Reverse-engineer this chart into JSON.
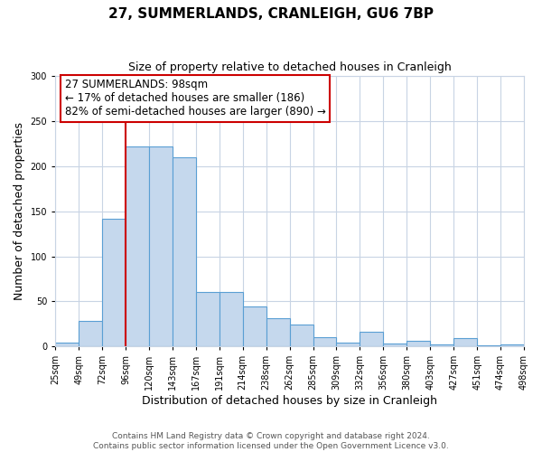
{
  "title": "27, SUMMERLANDS, CRANLEIGH, GU6 7BP",
  "subtitle": "Size of property relative to detached houses in Cranleigh",
  "xlabel": "Distribution of detached houses by size in Cranleigh",
  "ylabel": "Number of detached properties",
  "bin_labels": [
    "25sqm",
    "49sqm",
    "72sqm",
    "96sqm",
    "120sqm",
    "143sqm",
    "167sqm",
    "191sqm",
    "214sqm",
    "238sqm",
    "262sqm",
    "285sqm",
    "309sqm",
    "332sqm",
    "356sqm",
    "380sqm",
    "403sqm",
    "427sqm",
    "451sqm",
    "474sqm",
    "498sqm"
  ],
  "bar_values": [
    4,
    28,
    142,
    222,
    222,
    210,
    60,
    60,
    44,
    31,
    24,
    10,
    4,
    16,
    3,
    6,
    2,
    9,
    1,
    2
  ],
  "bar_color": "#c5d8ed",
  "bar_edge_color": "#5a9fd4",
  "vline_x": 3.0,
  "vline_color": "#cc0000",
  "annotation_line1": "27 SUMMERLANDS: 98sqm",
  "annotation_line2": "← 17% of detached houses are smaller (186)",
  "annotation_line3": "82% of semi-detached houses are larger (890) →",
  "annotation_box_color": "#ffffff",
  "annotation_box_edge_color": "#cc0000",
  "ylim": [
    0,
    300
  ],
  "yticks": [
    0,
    50,
    100,
    150,
    200,
    250,
    300
  ],
  "background_color": "#ffffff",
  "grid_color": "#c8d4e4",
  "footer_line1": "Contains HM Land Registry data © Crown copyright and database right 2024.",
  "footer_line2": "Contains public sector information licensed under the Open Government Licence v3.0.",
  "title_fontsize": 11,
  "subtitle_fontsize": 9,
  "axis_label_fontsize": 9,
  "tick_fontsize": 7,
  "annotation_fontsize": 8.5,
  "footer_fontsize": 6.5
}
